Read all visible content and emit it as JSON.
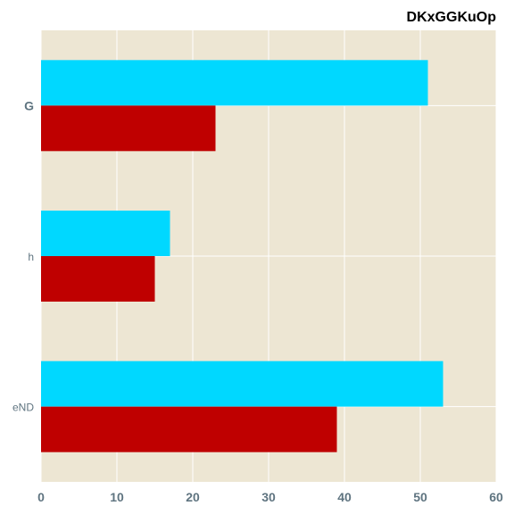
{
  "chart_data": {
    "type": "bar",
    "orientation": "horizontal",
    "title": "DKxGGKuOp",
    "categories": [
      "G",
      "h",
      "eND"
    ],
    "category_label_bold": [
      true,
      false,
      false
    ],
    "series": [
      {
        "values": [
          51,
          17,
          53
        ],
        "color": "#00d8ff"
      },
      {
        "values": [
          23,
          15,
          39
        ],
        "color": "#bf0000"
      }
    ],
    "xlim": [
      0,
      60
    ],
    "xticks": [
      0,
      10,
      20,
      30,
      40,
      50,
      60
    ],
    "grid": true,
    "background_color": "#ede6d3",
    "grid_color": "#ffffff"
  }
}
